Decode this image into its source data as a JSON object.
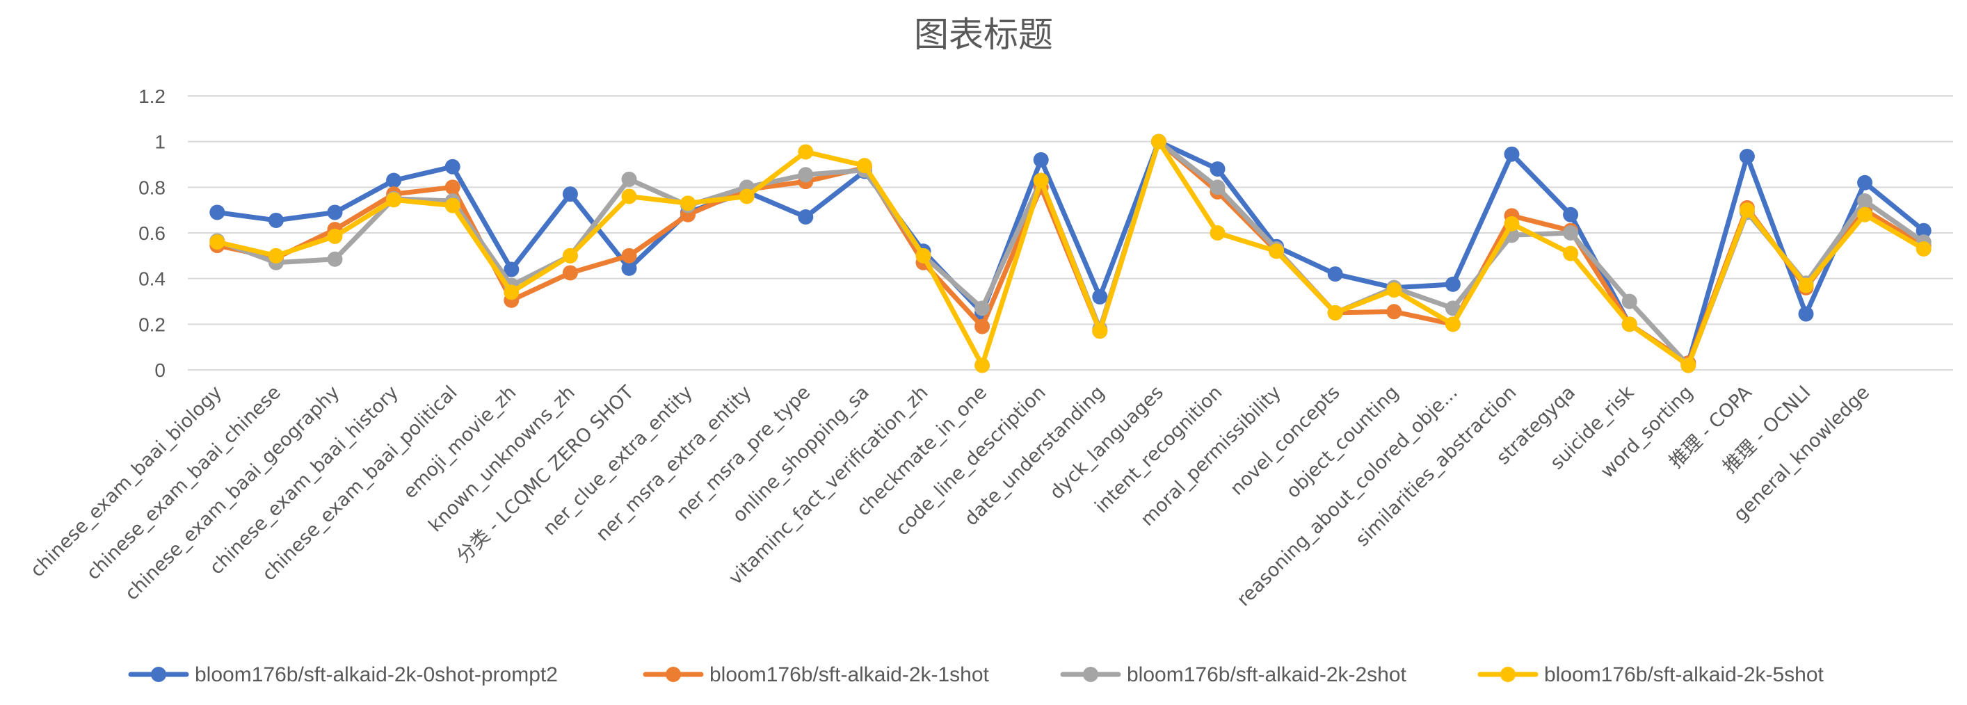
{
  "chart_data": {
    "type": "line",
    "title": "图表标题",
    "xlabel": "",
    "ylabel": "",
    "ylim": [
      0,
      1.2
    ],
    "yticks": [
      "0",
      "0.2",
      "0.4",
      "0.6",
      "0.8",
      "1",
      "1.2"
    ],
    "grid": true,
    "legend_position": "bottom",
    "categories": [
      "chinese_exam_baai_biology",
      "chinese_exam_baai_chinese",
      "chinese_exam_baai_geography",
      "chinese_exam_baai_history",
      "chinese_exam_baai_political",
      "emoji_movie_zh",
      "known_unknowns_zh",
      "分类 - LCQMC ZERO SHOT",
      "ner_clue_extra_entity",
      "ner_msra_extra_entity",
      "ner_msra_pre_type",
      "online_shopping_sa",
      "vitaminc_fact_verification_zh",
      "checkmate_in_one",
      "code_line_description",
      "date_understanding",
      "dyck_languages",
      "intent_recognition",
      "moral_permissibility",
      "novel_concepts",
      "object_counting",
      "reasoning_about_colored_obje...",
      "similarities_abstraction",
      "strategyqa",
      "suicide_risk",
      "word_sorting",
      "推理 - COPA",
      "推理 - OCNLI",
      "general_knowledge",
      ""
    ],
    "series": [
      {
        "name": "bloom176b/sft-alkaid-2k-0shot-prompt2",
        "color": "#4472C4",
        "values": [
          0.69,
          0.655,
          0.69,
          0.83,
          0.89,
          0.44,
          0.77,
          0.445,
          0.69,
          0.78,
          0.67,
          0.87,
          0.52,
          0.25,
          0.92,
          0.32,
          1.0,
          0.88,
          0.54,
          0.42,
          0.36,
          0.375,
          0.945,
          0.68,
          0.2,
          0.03,
          0.935,
          0.245,
          0.82,
          0.61
        ]
      },
      {
        "name": "bloom176b/sft-alkaid-2k-1shot",
        "color": "#ED7D31",
        "values": [
          0.545,
          0.49,
          0.615,
          0.77,
          0.8,
          0.305,
          0.425,
          0.5,
          0.68,
          0.79,
          0.825,
          0.885,
          0.47,
          0.19,
          0.8,
          0.17,
          1.0,
          0.78,
          0.52,
          0.25,
          0.255,
          0.2,
          0.675,
          0.61,
          0.2,
          0.03,
          0.71,
          0.36,
          0.7,
          0.545
        ]
      },
      {
        "name": "bloom176b/sft-alkaid-2k-2shot",
        "color": "#A5A5A5",
        "values": [
          0.565,
          0.47,
          0.485,
          0.75,
          0.74,
          0.37,
          0.5,
          0.835,
          0.72,
          0.8,
          0.855,
          0.875,
          0.5,
          0.27,
          0.83,
          0.18,
          1.0,
          0.8,
          0.53,
          0.25,
          0.36,
          0.27,
          0.59,
          0.6,
          0.3,
          0.02,
          0.69,
          0.38,
          0.74,
          0.56
        ]
      },
      {
        "name": "bloom176b/sft-alkaid-2k-5shot",
        "color": "#FFC000",
        "values": [
          0.56,
          0.5,
          0.585,
          0.745,
          0.72,
          0.34,
          0.5,
          0.76,
          0.73,
          0.76,
          0.955,
          0.895,
          0.5,
          0.02,
          0.83,
          0.17,
          1.0,
          0.6,
          0.52,
          0.25,
          0.35,
          0.2,
          0.64,
          0.51,
          0.2,
          0.02,
          0.7,
          0.37,
          0.68,
          0.53
        ]
      }
    ]
  }
}
